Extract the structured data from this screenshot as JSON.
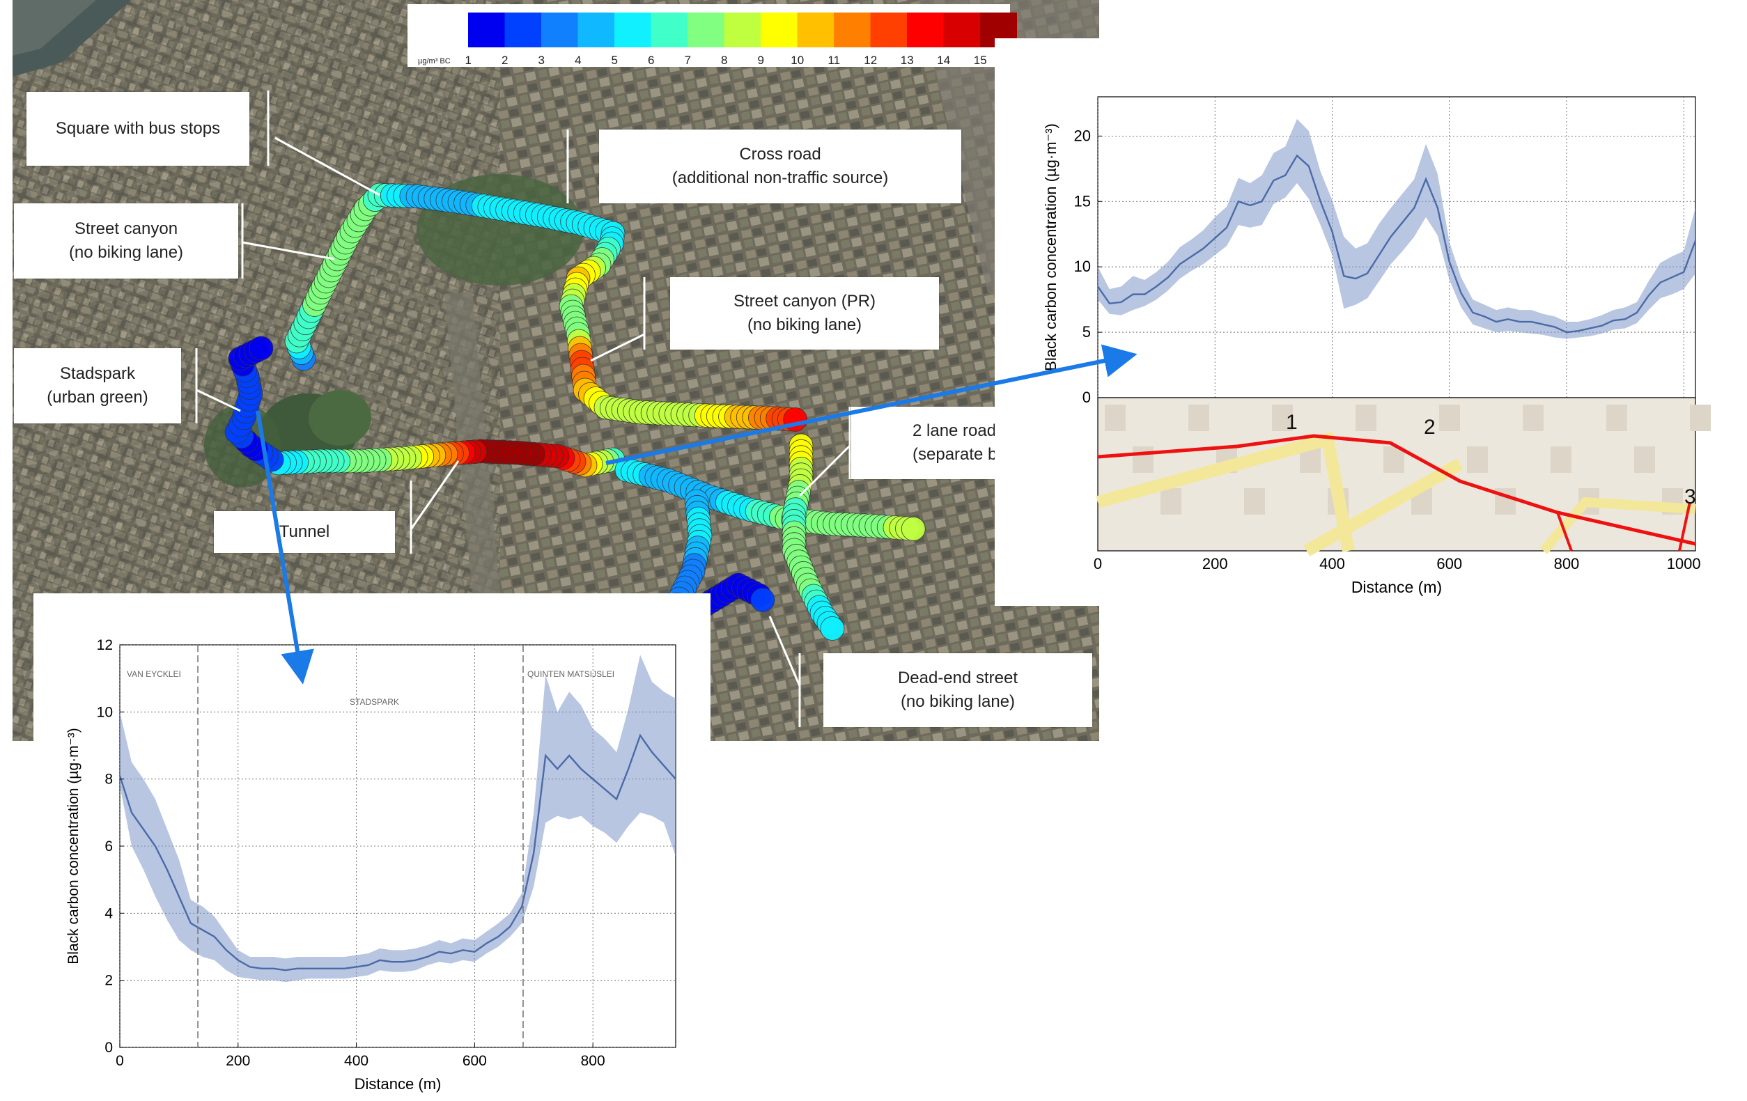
{
  "colorbar": {
    "unit_label": "µg/m³ BC",
    "ticks": [
      "1",
      "2",
      "3",
      "4",
      "5",
      "6",
      "7",
      "8",
      "9",
      "10",
      "11",
      "12",
      "13",
      "14",
      "15"
    ],
    "colors": [
      "#0000f0",
      "#0040ff",
      "#1080ff",
      "#10b8ff",
      "#10f0ff",
      "#40ffc8",
      "#80ff80",
      "#c0ff40",
      "#ffff00",
      "#ffc000",
      "#ff8000",
      "#ff4000",
      "#ff0000",
      "#d80000",
      "#a00000"
    ]
  },
  "callouts": {
    "square_bus_stops": "Square with bus stops",
    "cross_road_1": "Cross road",
    "cross_road_2": "(additional non-traffic source)",
    "street_canyon_1": "Street canyon",
    "street_canyon_2": "(no biking lane)",
    "street_canyon_pr_1": "Street canyon (PR)",
    "street_canyon_pr_2": "(no biking lane)",
    "stadspark_1": "Stadspark",
    "stadspark_2": "(urban green)",
    "two_lane_1": "2 lane road",
    "two_lane_2": "(separate bi",
    "tunnel": "Tunnel",
    "dead_end_1": "Dead-end street",
    "dead_end_2": "(no biking lane)"
  },
  "right_map": {
    "markers": [
      "1",
      "2",
      "3"
    ]
  },
  "chart_data": [
    {
      "type": "line",
      "title": "",
      "xlabel": "Distance (m)",
      "ylabel": "Black carbon concentration (µg·m⁻³)",
      "xlim": [
        0,
        1020
      ],
      "ylim": [
        0,
        23
      ],
      "xticks": [
        "0",
        "200",
        "400",
        "600",
        "800",
        "1000"
      ],
      "yticks": [
        "0",
        "5",
        "10",
        "15",
        "20"
      ],
      "grid": true,
      "series": [
        {
          "x": [
            0,
            20,
            40,
            60,
            80,
            100,
            120,
            140,
            160,
            180,
            200,
            220,
            240,
            260,
            280,
            300,
            320,
            340,
            360,
            380,
            400,
            420,
            440,
            460,
            480,
            500,
            520,
            540,
            560,
            580,
            600,
            620,
            640,
            660,
            680,
            700,
            720,
            740,
            760,
            780,
            800,
            820,
            840,
            860,
            880,
            900,
            920,
            940,
            960,
            980,
            1000,
            1020
          ],
          "mean": [
            8.5,
            7.2,
            7.3,
            7.9,
            7.9,
            8.5,
            9.2,
            10.2,
            10.8,
            11.4,
            12.2,
            13.0,
            15.0,
            14.7,
            15.0,
            16.6,
            17.0,
            18.5,
            17.7,
            15.0,
            12.7,
            9.3,
            9.1,
            9.5,
            10.9,
            12.3,
            13.4,
            14.5,
            16.7,
            14.5,
            10.4,
            8.0,
            6.5,
            6.2,
            5.8,
            6.0,
            5.8,
            5.8,
            5.6,
            5.4,
            5.0,
            5.1,
            5.3,
            5.5,
            5.9,
            6.0,
            6.5,
            7.8,
            8.8,
            9.2,
            9.6,
            12.0
          ],
          "lower": [
            7.5,
            6.4,
            6.3,
            6.7,
            7.0,
            7.5,
            8.2,
            9.1,
            9.7,
            10.2,
            10.9,
            11.6,
            13.2,
            13.0,
            13.2,
            14.8,
            15.3,
            16.4,
            15.2,
            13.2,
            10.9,
            6.8,
            7.1,
            7.6,
            8.9,
            10.2,
            11.2,
            12.3,
            13.8,
            12.4,
            9.0,
            6.9,
            5.6,
            5.3,
            5.0,
            5.1,
            5.0,
            4.9,
            4.8,
            4.6,
            4.5,
            4.6,
            4.7,
            4.9,
            5.2,
            5.3,
            5.7,
            6.7,
            7.6,
            7.9,
            8.3,
            9.5
          ],
          "upper": [
            10.0,
            8.3,
            8.5,
            9.3,
            9.0,
            9.6,
            10.4,
            11.5,
            12.1,
            12.8,
            13.8,
            14.6,
            16.8,
            16.4,
            17.0,
            18.7,
            19.2,
            21.3,
            20.4,
            17.3,
            15.1,
            12.3,
            11.4,
            11.8,
            13.3,
            14.5,
            15.6,
            16.7,
            19.4,
            17.1,
            11.9,
            9.2,
            7.5,
            7.1,
            6.7,
            6.9,
            6.7,
            6.7,
            6.4,
            6.2,
            5.8,
            5.8,
            6.0,
            6.3,
            6.7,
            6.9,
            7.3,
            8.9,
            10.3,
            10.8,
            11.2,
            14.5
          ]
        }
      ]
    },
    {
      "type": "line",
      "title": "",
      "xlabel": "Distance (m)",
      "ylabel": "Black carbon concentration (µg·m⁻³)",
      "xlim": [
        0,
        940
      ],
      "ylim": [
        0,
        12
      ],
      "xticks": [
        "0",
        "200",
        "400",
        "600",
        "800"
      ],
      "yticks": [
        "0",
        "2",
        "4",
        "6",
        "8",
        "10",
        "12"
      ],
      "grid": true,
      "vlines": [
        132,
        682
      ],
      "segment_labels": [
        "VAN EYCKLEI",
        "STADSPARK",
        "QUINTEN MATSIJSLEI"
      ],
      "series": [
        {
          "x": [
            0,
            20,
            40,
            60,
            80,
            100,
            120,
            140,
            160,
            180,
            200,
            220,
            240,
            260,
            280,
            300,
            320,
            340,
            360,
            380,
            400,
            420,
            440,
            460,
            480,
            500,
            520,
            540,
            560,
            580,
            600,
            620,
            640,
            660,
            680,
            700,
            720,
            740,
            760,
            780,
            800,
            820,
            840,
            860,
            880,
            900,
            920,
            940
          ],
          "mean": [
            8.1,
            7.0,
            6.5,
            6.0,
            5.3,
            4.5,
            3.7,
            3.5,
            3.3,
            2.9,
            2.6,
            2.4,
            2.35,
            2.35,
            2.3,
            2.35,
            2.35,
            2.35,
            2.35,
            2.35,
            2.4,
            2.45,
            2.6,
            2.55,
            2.55,
            2.6,
            2.7,
            2.85,
            2.8,
            2.9,
            2.85,
            3.1,
            3.3,
            3.6,
            4.2,
            5.8,
            8.7,
            8.3,
            8.7,
            8.3,
            8.0,
            7.7,
            7.4,
            8.3,
            9.3,
            8.8,
            8.4,
            8.0
          ],
          "lower": [
            7.8,
            6.0,
            5.3,
            4.5,
            3.8,
            3.2,
            2.9,
            2.7,
            2.6,
            2.3,
            2.1,
            2.05,
            2.0,
            2.0,
            1.95,
            2.0,
            2.05,
            2.05,
            2.05,
            2.05,
            2.1,
            2.15,
            2.3,
            2.25,
            2.25,
            2.3,
            2.45,
            2.55,
            2.5,
            2.6,
            2.55,
            2.8,
            3.0,
            3.3,
            3.7,
            4.8,
            6.7,
            6.9,
            6.8,
            6.9,
            6.6,
            6.4,
            6.1,
            6.6,
            7.0,
            6.9,
            6.7,
            5.7
          ],
          "upper": [
            10.0,
            8.5,
            8.0,
            7.4,
            6.5,
            5.6,
            4.4,
            4.2,
            3.9,
            3.4,
            2.9,
            2.7,
            2.7,
            2.7,
            2.65,
            2.7,
            2.7,
            2.7,
            2.7,
            2.7,
            2.75,
            2.8,
            2.95,
            2.9,
            2.9,
            2.95,
            3.05,
            3.2,
            3.1,
            3.25,
            3.2,
            3.45,
            3.7,
            4.0,
            4.6,
            7.0,
            11.1,
            10.0,
            10.6,
            10.2,
            9.5,
            9.2,
            8.8,
            10.1,
            11.7,
            10.9,
            10.6,
            10.4
          ]
        }
      ]
    }
  ]
}
